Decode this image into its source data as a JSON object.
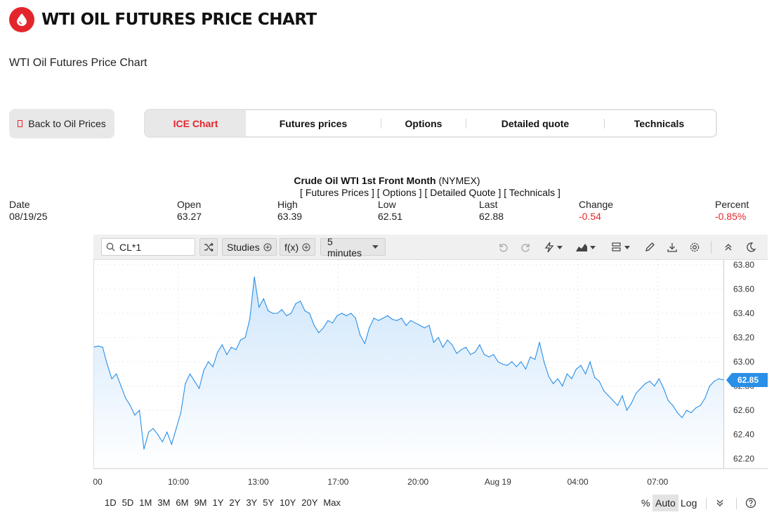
{
  "header": {
    "title": "WTI OIL FUTURES PRICE CHART",
    "subtitle": "WTI Oil Futures Price Chart"
  },
  "back_button": {
    "label": "Back to Oil Prices"
  },
  "tabs": [
    {
      "label": "ICE Chart",
      "active": true
    },
    {
      "label": "Futures prices"
    },
    {
      "label": "Options"
    },
    {
      "label": "Detailed quote"
    },
    {
      "label": "Technicals"
    }
  ],
  "quote": {
    "name": "Crude Oil WTI 1st Front Month",
    "exchange": "(NYMEX)",
    "links": "[ Futures Prices ] [ Options ] [ Detailed Quote ] [ Technicals ]",
    "date_label": "Date",
    "date": "08/19/25",
    "open_label": "Open",
    "open": "63.27",
    "high_label": "High",
    "high": "63.39",
    "low_label": "Low",
    "low": "62.51",
    "last_label": "Last",
    "last": "62.88",
    "change_label": "Change",
    "change": "-0.54",
    "percent_label": "Percent",
    "percent": "-0.85%"
  },
  "toolbar": {
    "symbol": "CL*1",
    "studies_label": "Studies",
    "fx_label": "f(x)",
    "interval_label": "5 minutes"
  },
  "footer": {
    "ranges": [
      "1D",
      "5D",
      "1M",
      "3M",
      "6M",
      "9M",
      "1Y",
      "2Y",
      "3Y",
      "5Y",
      "10Y",
      "20Y",
      "Max"
    ],
    "percent_label": "%",
    "auto_label": "Auto",
    "log_label": "Log"
  },
  "colors": {
    "accent": "#e3262b",
    "line": "#2a8fe6",
    "area_top": "#cfe6fb",
    "area_bottom": "#ffffff",
    "negative": "#e3262b"
  },
  "chart_data": {
    "type": "area",
    "ylim": [
      62.12,
      63.84
    ],
    "yticks": [
      62.2,
      62.4,
      62.6,
      62.8,
      63.0,
      63.2,
      63.4,
      63.6,
      63.8
    ],
    "xticks": [
      "00",
      "10:00",
      "13:00",
      "17:00",
      "20:00",
      "Aug 19",
      "04:00",
      "07:00"
    ],
    "last_price_label": "62.85",
    "last_price": 62.85,
    "values": [
      63.12,
      63.13,
      63.12,
      62.98,
      62.86,
      62.9,
      62.8,
      62.7,
      62.64,
      62.56,
      62.6,
      62.28,
      62.42,
      62.45,
      62.4,
      62.34,
      62.42,
      62.32,
      62.45,
      62.58,
      62.82,
      62.9,
      62.84,
      62.78,
      62.93,
      63.0,
      62.96,
      63.08,
      63.14,
      63.06,
      63.12,
      63.1,
      63.18,
      63.2,
      63.35,
      63.7,
      63.45,
      63.52,
      63.42,
      63.4,
      63.4,
      63.43,
      63.38,
      63.4,
      63.48,
      63.5,
      63.42,
      63.4,
      63.3,
      63.24,
      63.28,
      63.34,
      63.32,
      63.38,
      63.4,
      63.38,
      63.4,
      63.36,
      63.22,
      63.15,
      63.28,
      63.36,
      63.34,
      63.36,
      63.38,
      63.35,
      63.34,
      63.36,
      63.3,
      63.34,
      63.32,
      63.3,
      63.28,
      63.3,
      63.16,
      63.2,
      63.12,
      63.18,
      63.14,
      63.07,
      63.1,
      63.12,
      63.06,
      63.08,
      63.14,
      63.06,
      63.04,
      63.06,
      63.0,
      62.98,
      62.97,
      63.0,
      62.96,
      63.0,
      62.94,
      63.04,
      63.02,
      63.16,
      63.0,
      62.88,
      62.82,
      62.86,
      62.8,
      62.9,
      62.86,
      62.94,
      62.97,
      62.9,
      63.0,
      62.87,
      62.84,
      62.76,
      62.72,
      62.68,
      62.64,
      62.72,
      62.6,
      62.66,
      62.74,
      62.78,
      62.82,
      62.84,
      62.8,
      62.86,
      62.78,
      62.68,
      62.64,
      62.58,
      62.54,
      62.6,
      62.58,
      62.62,
      62.64,
      62.7,
      62.8,
      62.84,
      62.86,
      62.85
    ],
    "grid": true
  }
}
